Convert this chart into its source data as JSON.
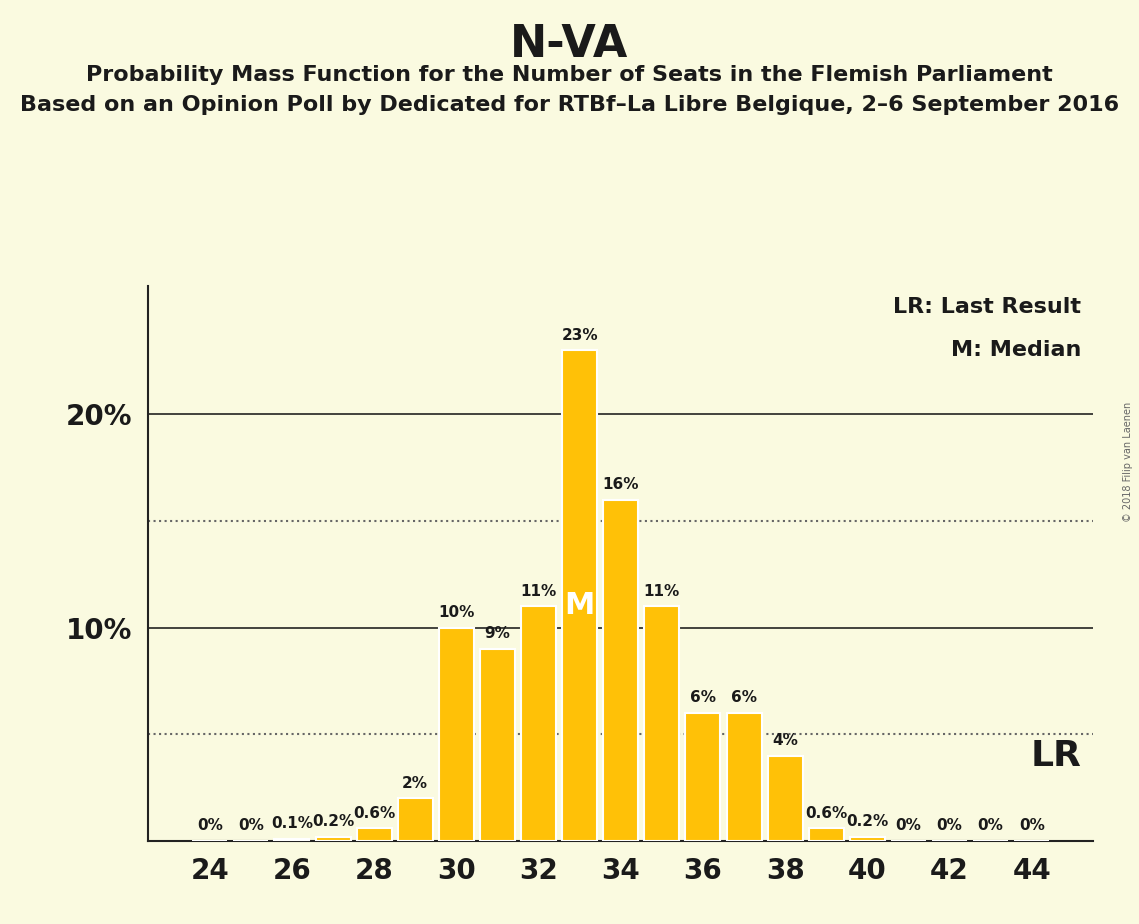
{
  "title": "N-VA",
  "subtitle1": "Probability Mass Function for the Number of Seats in the Flemish Parliament",
  "subtitle2": "Based on an Opinion Poll by Dedicated for RTBf–La Libre Belgique, 2–6 September 2016",
  "copyright": "© 2018 Filip van Laenen",
  "seats": [
    24,
    25,
    26,
    27,
    28,
    29,
    30,
    31,
    32,
    33,
    34,
    35,
    36,
    37,
    38,
    39,
    40,
    41,
    42,
    43,
    44
  ],
  "probabilities": [
    0.0,
    0.0,
    0.1,
    0.2,
    0.6,
    2.0,
    10.0,
    9.0,
    11.0,
    23.0,
    16.0,
    11.0,
    6.0,
    6.0,
    4.0,
    0.6,
    0.2,
    0.0,
    0.0,
    0.0,
    0.0
  ],
  "prob_labels": [
    "0%",
    "0%",
    "0.1%",
    "0.2%",
    "0.6%",
    "2%",
    "10%",
    "9%",
    "11%",
    "23%",
    "16%",
    "11%",
    "6%",
    "6%",
    "4%",
    "0.6%",
    "0.2%",
    "0%",
    "0%",
    "0%",
    "0%"
  ],
  "bar_color": "#FFC107",
  "bar_edge_color": "#FFFFFF",
  "background_color": "#FAFAE0",
  "label_color": "#1A1A1A",
  "median_seat": 33,
  "lr_seat": 39,
  "dotted_line_1": 5.0,
  "dotted_line_2": 15.0,
  "ylim_max": 26.0,
  "legend_lr": "LR: Last Result",
  "legend_m": "M: Median",
  "lr_label": "LR",
  "m_label": "M",
  "bar_label_fontsize": 11,
  "tick_fontsize": 20,
  "legend_fontsize": 16,
  "title_fontsize": 32,
  "subtitle_fontsize": 16
}
